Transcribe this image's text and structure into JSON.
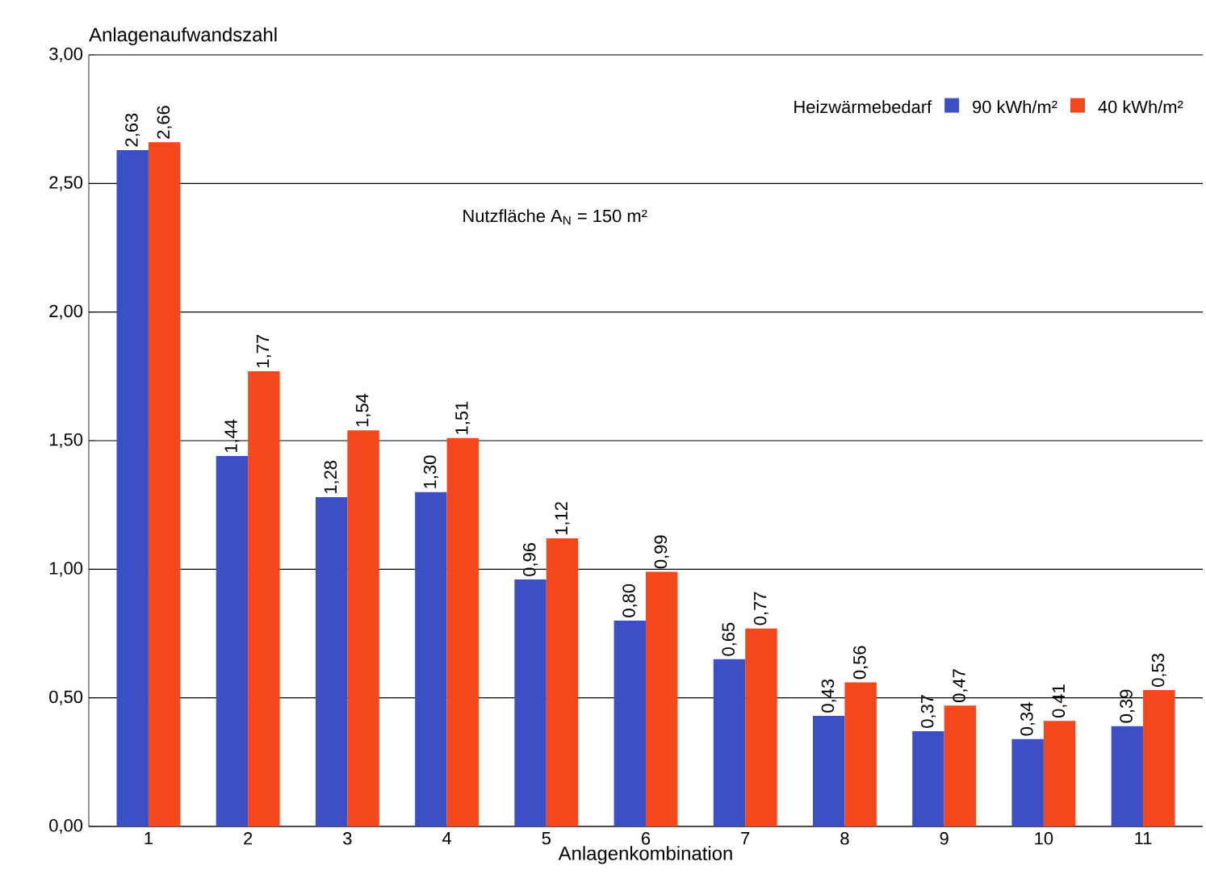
{
  "chart_data": {
    "type": "bar",
    "ylabel": "Anlagenaufwandszahl",
    "xlabel": "Anlagenkombination",
    "legend_title": "Heizwärmebedarf",
    "categories": [
      "1",
      "2",
      "3",
      "4",
      "5",
      "6",
      "7",
      "8",
      "9",
      "10",
      "11"
    ],
    "series": [
      {
        "name": "90 kWh/m²",
        "color": "#3d4fc4",
        "values": [
          2.63,
          1.44,
          1.28,
          1.3,
          0.96,
          0.8,
          0.65,
          0.43,
          0.37,
          0.34,
          0.39
        ],
        "value_labels": [
          "2,63",
          "1,44",
          "1,28",
          "1,30",
          "0,96",
          "0,80",
          "0,65",
          "0,43",
          "0,37",
          "0,34",
          "0,39"
        ]
      },
      {
        "name": "40 kWh/m²",
        "color": "#f5471c",
        "values": [
          2.66,
          1.77,
          1.54,
          1.51,
          1.12,
          0.99,
          0.77,
          0.56,
          0.47,
          0.41,
          0.53
        ],
        "value_labels": [
          "2,66",
          "1,77",
          "1,54",
          "1,51",
          "1,12",
          "0,99",
          "0,77",
          "0,56",
          "0,47",
          "0,41",
          "0,53"
        ]
      }
    ],
    "ylim": [
      0,
      3
    ],
    "yticks": [
      {
        "value": 0,
        "label": "0,00"
      },
      {
        "value": 0.5,
        "label": "0,50"
      },
      {
        "value": 1,
        "label": "1,00"
      },
      {
        "value": 1.5,
        "label": "1,50"
      },
      {
        "value": 2,
        "label": "2,00"
      },
      {
        "value": 2.5,
        "label": "2,50"
      },
      {
        "value": 3,
        "label": "3,00"
      }
    ],
    "grid": "y",
    "legend": "top right",
    "annotations": [
      "Nutzfläche A$_{N}$ = 150 m²"
    ]
  }
}
